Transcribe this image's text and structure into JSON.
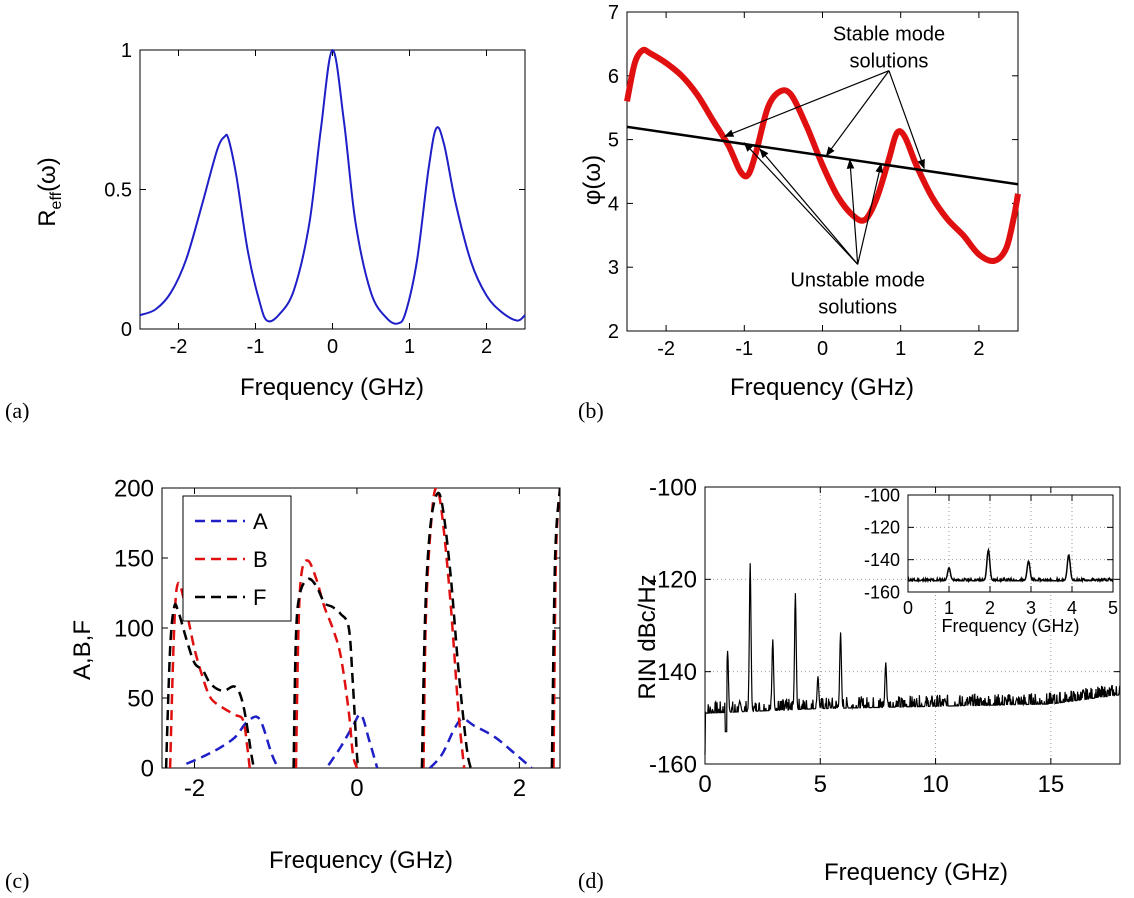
{
  "panel_labels": [
    "(a)",
    "(b)",
    "(c)",
    "(d)"
  ],
  "colors": {
    "blue": "#1f1fc8",
    "red": "#e01010",
    "black": "#000000",
    "grid": "#9a9a9a"
  },
  "chart_data": [
    {
      "type": "line",
      "xlabel": "Frequency (GHz)",
      "ylabel": "R_eff(ω)",
      "xlim": [
        -2.5,
        2.5
      ],
      "ylim": [
        0,
        1
      ],
      "xticks": [
        -2,
        -1,
        0,
        1,
        2
      ],
      "yticks": [
        0,
        0.5,
        1
      ],
      "series": [
        {
          "color": "#1f1fc8",
          "x": [
            -2.5,
            -2.3,
            -2.1,
            -1.9,
            -1.7,
            -1.5,
            -1.4,
            -1.35,
            -1.25,
            -1.1,
            -0.95,
            -0.85,
            -0.7,
            -0.5,
            -0.3,
            -0.15,
            0,
            0.15,
            0.3,
            0.5,
            0.7,
            0.85,
            0.95,
            1.1,
            1.25,
            1.35,
            1.45,
            1.6,
            1.8,
            2.0,
            2.2,
            2.4,
            2.5
          ],
          "y": [
            0.05,
            0.07,
            0.13,
            0.25,
            0.44,
            0.64,
            0.69,
            0.68,
            0.55,
            0.28,
            0.1,
            0.03,
            0.05,
            0.14,
            0.38,
            0.72,
            1.0,
            0.74,
            0.38,
            0.13,
            0.04,
            0.02,
            0.06,
            0.25,
            0.58,
            0.72,
            0.66,
            0.45,
            0.24,
            0.12,
            0.06,
            0.03,
            0.05
          ]
        }
      ]
    },
    {
      "type": "line",
      "xlabel": "Frequency (GHz)",
      "ylabel": "φ(ω)",
      "xlim": [
        -2.5,
        2.5
      ],
      "ylim": [
        2,
        7
      ],
      "xticks": [
        -2,
        -1,
        0,
        1,
        2
      ],
      "yticks": [
        2,
        3,
        4,
        5,
        6,
        7
      ],
      "series": [
        {
          "color": "#e01010",
          "x": [
            -2.5,
            -2.4,
            -2.3,
            -2.2,
            -2.0,
            -1.8,
            -1.6,
            -1.4,
            -1.2,
            -1.05,
            -0.95,
            -0.85,
            -0.7,
            -0.55,
            -0.4,
            -0.2,
            0,
            0.2,
            0.4,
            0.55,
            0.7,
            0.85,
            0.95,
            1.05,
            1.2,
            1.4,
            1.6,
            1.8,
            2.0,
            2.2,
            2.35,
            2.45,
            2.5
          ],
          "y": [
            5.6,
            6.2,
            6.4,
            6.35,
            6.2,
            6.0,
            5.7,
            5.3,
            4.9,
            4.5,
            4.45,
            4.8,
            5.5,
            5.75,
            5.7,
            5.2,
            4.6,
            4.1,
            3.8,
            3.75,
            4.1,
            4.7,
            5.1,
            5.05,
            4.6,
            4.1,
            3.75,
            3.5,
            3.2,
            3.1,
            3.3,
            3.8,
            4.15
          ]
        },
        {
          "color": "#000000",
          "x": [
            -2.5,
            2.5
          ],
          "y": [
            5.2,
            4.3
          ]
        }
      ],
      "annotations": [
        {
          "lines": [
            "Stable mode",
            "solutions"
          ],
          "x": 0.85,
          "y": 6.55,
          "arrows_to": [
            [
              -1.25,
              5.05
            ],
            [
              0.05,
              4.75
            ],
            [
              1.3,
              4.55
            ]
          ]
        },
        {
          "lines": [
            "Unstable mode",
            "solutions"
          ],
          "x": 0.45,
          "y": 2.7,
          "arrows_to": [
            [
              -1.0,
              4.95
            ],
            [
              -0.8,
              4.85
            ],
            [
              0.35,
              4.68
            ],
            [
              0.75,
              4.62
            ]
          ]
        }
      ]
    },
    {
      "type": "line",
      "xlabel": "Frequency (GHz)",
      "ylabel": "A,B,F",
      "xlim": [
        -2.4,
        2.5
      ],
      "ylim": [
        0,
        200
      ],
      "xticks": [
        -2,
        0,
        2
      ],
      "yticks": [
        0,
        50,
        100,
        150,
        200
      ],
      "legend_position": "top-left",
      "series": [
        {
          "name": "A",
          "color": "#1f1fc8",
          "segments": [
            {
              "x": [
                -2.1,
                -1.9,
                -1.7,
                -1.5,
                -1.35,
                -1.2,
                -1.05,
                -0.97
              ],
              "y": [
                3,
                8,
                14,
                22,
                33,
                35,
                10,
                0
              ]
            },
            {
              "x": [
                -0.35,
                -0.2,
                -0.05,
                0.05,
                0.15,
                0.25
              ],
              "y": [
                2,
                15,
                30,
                38,
                20,
                0
              ]
            },
            {
              "x": [
                0.9,
                1.05,
                1.2,
                1.3,
                1.45,
                1.7,
                1.95,
                2.15
              ],
              "y": [
                0,
                10,
                28,
                35,
                30,
                22,
                10,
                0
              ]
            }
          ]
        },
        {
          "name": "B",
          "color": "#e01010",
          "segments": [
            {
              "x": [
                -2.3,
                -2.25,
                -2.2,
                -2.1,
                -2.0,
                -1.9,
                -1.8,
                -1.65,
                -1.5,
                -1.4,
                -1.35,
                -1.32
              ],
              "y": [
                0,
                100,
                132,
                112,
                85,
                65,
                50,
                43,
                38,
                34,
                15,
                0
              ]
            },
            {
              "x": [
                -0.75,
                -0.72,
                -0.68,
                -0.6,
                -0.5,
                -0.4,
                -0.3,
                -0.2,
                -0.1,
                -0.05,
                0.0
              ],
              "y": [
                0,
                100,
                140,
                148,
                135,
                115,
                100,
                80,
                40,
                10,
                0
              ]
            },
            {
              "x": [
                0.82,
                0.85,
                0.92,
                0.98,
                1.05,
                1.15,
                1.25,
                1.32
              ],
              "y": [
                0,
                110,
                180,
                200,
                180,
                120,
                40,
                0
              ]
            },
            {
              "x": [
                2.42,
                2.45,
                2.5
              ],
              "y": [
                0,
                150,
                200
              ]
            }
          ]
        },
        {
          "name": "F",
          "color": "#000000",
          "segments": [
            {
              "x": [
                -2.35,
                -2.3,
                -2.25,
                -2.2,
                -2.1,
                -2.0,
                -1.9,
                -1.8,
                -1.65,
                -1.5,
                -1.4,
                -1.3,
                -1.27
              ],
              "y": [
                0,
                85,
                115,
                112,
                92,
                75,
                70,
                60,
                55,
                58,
                45,
                10,
                0
              ]
            },
            {
              "x": [
                -0.78,
                -0.75,
                -0.7,
                -0.6,
                -0.5,
                -0.4,
                -0.3,
                -0.2,
                -0.1,
                -0.05,
                0.0,
                0.02
              ],
              "y": [
                0,
                95,
                125,
                135,
                130,
                118,
                115,
                110,
                100,
                60,
                10,
                0
              ]
            },
            {
              "x": [
                0.8,
                0.84,
                0.9,
                0.98,
                1.05,
                1.15,
                1.25,
                1.35,
                1.4
              ],
              "y": [
                0,
                110,
                170,
                195,
                188,
                140,
                70,
                15,
                0
              ]
            },
            {
              "x": [
                2.4,
                2.44,
                2.5
              ],
              "y": [
                0,
                150,
                200
              ]
            }
          ]
        }
      ]
    },
    {
      "type": "line",
      "xlabel": "Frequency (GHz)",
      "ylabel": "RIN dBc/Hz",
      "xlim": [
        0,
        18
      ],
      "ylim": [
        -160,
        -100
      ],
      "xticks": [
        0,
        5,
        10,
        15
      ],
      "yticks": [
        -160,
        -140,
        -120,
        -100
      ],
      "grid": true,
      "series": [
        {
          "color": "#000000",
          "baseline": [
            [
              0,
              -149
            ],
            [
              5,
              -148
            ],
            [
              10,
              -147.5
            ],
            [
              15,
              -147
            ],
            [
              18,
              -145
            ]
          ],
          "noise_band": 2.5,
          "peaks": [
            [
              0.98,
              -135.5
            ],
            [
              1.96,
              -116.5
            ],
            [
              2.94,
              -133
            ],
            [
              3.92,
              -123
            ],
            [
              4.9,
              -141
            ],
            [
              5.88,
              -131.5
            ],
            [
              7.84,
              -138
            ]
          ],
          "dip": [
            0.9,
            -153
          ]
        }
      ],
      "inset": {
        "xlabel": "Frequency (GHz)",
        "xlim": [
          0,
          5
        ],
        "ylim": [
          -160,
          -100
        ],
        "xticks": [
          0,
          1,
          2,
          3,
          4,
          5
        ],
        "yticks": [
          -160,
          -140,
          -120,
          -100
        ],
        "baseline": -153,
        "peaks": [
          [
            1.0,
            -145
          ],
          [
            1.96,
            -134
          ],
          [
            2.94,
            -141
          ],
          [
            3.92,
            -137
          ]
        ]
      }
    }
  ]
}
